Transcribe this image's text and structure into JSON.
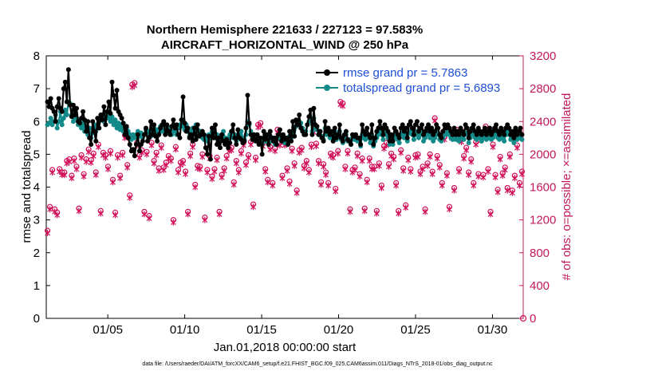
{
  "chart_data": {
    "type": "line",
    "title_line1": "Northern Hemisphere 221633 / 227123 = 97.583%",
    "title_line2": "AIRCRAFT_HORIZONTAL_WIND @ 250 hPa",
    "xlabel": "Jan.01,2018 00:00:00 start",
    "ylabel_left": "rmse and totalspread",
    "ylabel_right": "# of obs: o=possible; ×=assimilated",
    "footer": "data file: /Users/raeder/DAI/ATM_forcXX/CAM6_setup/f.e21.FHIST_BGC.f09_025.CAM6assim.011/Diags_NTrS_2018-01/obs_diag_output.nc",
    "xlim": [
      1.0,
      32.0
    ],
    "ylim_left": [
      0,
      8
    ],
    "ylim_right": [
      0,
      3200
    ],
    "x_ticks": [
      {
        "x": 5,
        "label": "01/05"
      },
      {
        "x": 10,
        "label": "01/10"
      },
      {
        "x": 15,
        "label": "01/15"
      },
      {
        "x": 20,
        "label": "01/20"
      },
      {
        "x": 25,
        "label": "01/25"
      },
      {
        "x": 30,
        "label": "01/30"
      }
    ],
    "y_ticks_left": [
      "0",
      "1",
      "2",
      "3",
      "4",
      "5",
      "6",
      "7",
      "8"
    ],
    "y_ticks_right": [
      "0",
      "400",
      "800",
      "1200",
      "1600",
      "2000",
      "2400",
      "2800",
      "3200"
    ],
    "legend": [
      {
        "label": "rmse grand pr = 5.7863",
        "color": "#000000"
      },
      {
        "label": "totalspread grand pr = 5.6893",
        "color": "#138a8a"
      }
    ],
    "series": [
      {
        "name": "rmse",
        "color": "#000000",
        "marker": "dot",
        "axis": "left",
        "values": [
          6.6,
          6.45,
          6.7,
          6.4,
          6.3,
          6.0,
          6.45,
          6.7,
          6.4,
          6.3,
          7.0,
          7.2,
          6.6,
          7.58,
          6.5,
          6.15,
          6.5,
          6.2,
          6.4,
          6.0,
          5.95,
          6.1,
          6.3,
          6.05,
          5.7,
          6.0,
          5.5,
          5.3,
          6.0,
          5.7,
          5.4,
          6.1,
          5.8,
          6.2,
          6.05,
          6.45,
          5.9,
          6.3,
          6.6,
          6.25,
          7.2,
          6.8,
          6.4,
          6.95,
          6.3,
          6.2,
          6.1,
          5.95,
          5.6,
          5.85,
          5.5,
          5.3,
          5.1,
          5.15,
          4.95,
          5.3,
          5.6,
          5.1,
          5.3,
          5.4,
          5.6,
          5.8,
          5.4,
          5.5,
          6.0,
          5.6,
          5.9,
          5.55,
          5.4,
          5.6,
          5.8,
          5.9,
          6.0,
          5.6,
          5.9,
          5.7,
          5.6,
          5.85,
          6.05,
          5.8,
          5.9,
          5.6,
          5.5,
          6.05,
          6.75,
          5.95,
          5.7,
          5.8,
          5.5,
          5.6,
          5.4,
          5.8,
          5.45,
          5.9,
          5.55,
          5.6,
          5.7,
          5.6,
          5.2,
          5.0,
          5.55,
          4.85,
          5.8,
          5.5,
          5.9,
          5.3,
          5.5,
          5.2,
          5.6,
          5.4,
          5.3,
          5.45,
          5.2,
          5.35,
          5.7,
          5.9,
          5.5,
          5.3,
          5.75,
          5.5,
          5.45,
          5.35,
          5.4,
          5.8,
          6.8,
          5.95,
          5.6,
          5.45,
          5.6,
          5.4,
          5.6,
          5.3,
          5.5,
          5.0,
          5.7,
          5.45,
          5.6,
          5.3,
          5.7,
          5.5,
          5.4,
          5.5,
          5.3,
          5.6,
          5.75,
          5.4,
          5.6,
          5.45,
          5.5,
          5.3,
          5.7,
          5.4,
          6.0,
          5.55,
          6.05,
          5.9,
          6.2,
          5.8,
          5.7,
          5.6,
          5.6,
          5.9,
          6.15,
          6.35,
          5.6,
          6.4,
          5.9,
          5.85,
          5.6,
          5.7,
          5.5,
          5.4,
          6.0,
          5.7,
          5.8,
          5.6,
          5.7,
          5.4,
          5.8,
          5.5,
          5.6,
          5.9,
          5.5,
          5.4,
          5.6,
          5.7,
          5.45,
          5.4,
          5.3,
          5.6,
          5.55,
          5.6,
          5.5,
          5.5,
          5.3,
          5.9,
          5.7,
          5.6,
          5.8,
          5.6,
          5.5,
          5.9,
          5.3,
          5.5,
          5.7,
          5.8,
          6.0,
          5.8,
          5.6,
          5.9,
          5.8,
          5.7,
          5.4,
          5.6,
          5.4,
          5.8,
          5.7,
          5.6,
          5.5,
          5.8,
          5.9,
          5.7,
          5.8,
          5.5,
          5.9,
          6.0,
          5.8,
          5.6,
          5.9,
          6.0,
          5.7,
          5.8,
          5.9,
          5.6,
          5.7,
          5.8,
          5.9,
          5.7,
          5.8,
          5.6,
          5.7,
          5.9,
          5.8,
          5.6,
          5.5,
          5.7,
          5.9,
          5.8,
          5.9,
          5.8,
          5.7,
          5.6,
          5.8,
          5.6,
          5.7,
          5.6,
          5.8,
          5.7,
          5.6,
          5.9,
          5.8,
          5.5,
          5.7,
          5.8,
          5.9,
          5.7,
          5.6,
          5.8,
          5.7,
          5.6,
          5.7,
          5.8,
          5.6,
          5.7,
          5.8,
          5.6,
          5.7,
          5.8,
          5.9,
          5.7,
          5.6,
          5.8,
          5.7,
          5.6,
          5.8,
          5.9,
          5.8,
          5.6,
          5.7,
          5.5,
          5.8,
          5.6,
          5.7,
          5.8,
          5.6
        ]
      },
      {
        "name": "totalspread",
        "color": "#138a8a",
        "marker": "dot",
        "axis": "left",
        "values": [
          5.9,
          5.95,
          6.1,
          5.9,
          6.0,
          6.2,
          5.8,
          6.0,
          6.3,
          5.9,
          6.1,
          6.35,
          6.2,
          6.6,
          6.55,
          6.2,
          6.0,
          6.3,
          6.1,
          5.9,
          6.0,
          5.8,
          5.95,
          5.7,
          5.85,
          5.6,
          5.8,
          5.5,
          5.65,
          5.9,
          5.7,
          5.9,
          6.0,
          6.1,
          6.2,
          6.0,
          6.25,
          6.1,
          6.3,
          6.0,
          6.15,
          5.9,
          6.05,
          5.8,
          5.95,
          5.75,
          5.9,
          5.7,
          5.75,
          5.8,
          5.7,
          5.6,
          5.45,
          5.6,
          5.5,
          5.6,
          5.7,
          5.55,
          5.65,
          5.5,
          5.6,
          5.75,
          5.6,
          5.7,
          5.55,
          5.7,
          5.8,
          5.6,
          5.75,
          5.6,
          5.85,
          5.7,
          5.8,
          5.9,
          5.65,
          5.8,
          5.75,
          5.6,
          5.7,
          5.85,
          5.6,
          5.8,
          5.9,
          5.85,
          6.05,
          5.75,
          5.9,
          5.7,
          5.55,
          5.7,
          5.8,
          5.6,
          5.9,
          5.75,
          5.6,
          5.7,
          5.5,
          5.45,
          5.55,
          5.4,
          5.6,
          5.5,
          5.7,
          5.8,
          5.5,
          5.6,
          5.5,
          5.45,
          5.6,
          5.7,
          5.5,
          5.4,
          5.5,
          5.6,
          5.7,
          5.5,
          5.6,
          5.4,
          5.5,
          5.6,
          5.7,
          5.5,
          5.45,
          5.6,
          6.0,
          5.9,
          5.7,
          5.5,
          5.6,
          5.45,
          5.5,
          5.35,
          5.45,
          5.3,
          5.5,
          5.4,
          5.6,
          5.45,
          5.55,
          5.4,
          5.5,
          5.3,
          5.45,
          5.5,
          5.55,
          5.45,
          5.5,
          5.35,
          5.5,
          5.4,
          5.55,
          5.5,
          5.7,
          5.55,
          5.85,
          5.9,
          6.0,
          5.95,
          5.8,
          5.6,
          5.7,
          5.9,
          6.0,
          6.05,
          5.7,
          6.1,
          5.8,
          5.75,
          5.6,
          5.7,
          5.55,
          5.45,
          5.8,
          5.6,
          5.7,
          5.5,
          5.6,
          5.4,
          5.7,
          5.45,
          5.55,
          5.7,
          5.45,
          5.35,
          5.5,
          5.6,
          5.4,
          5.45,
          5.3,
          5.5,
          5.45,
          5.5,
          5.4,
          5.4,
          5.25,
          5.6,
          5.5,
          5.45,
          5.6,
          5.5,
          5.35,
          5.6,
          5.25,
          5.4,
          5.5,
          5.6,
          5.7,
          5.6,
          5.45,
          5.7,
          5.6,
          5.5,
          5.3,
          5.45,
          5.3,
          5.6,
          5.5,
          5.45,
          5.35,
          5.6,
          5.65,
          5.5,
          5.6,
          5.4,
          5.65,
          5.7,
          5.6,
          5.45,
          5.6,
          5.7,
          5.5,
          5.6,
          5.7,
          5.4,
          5.5,
          5.6,
          5.7,
          5.5,
          5.6,
          5.4,
          5.5,
          5.7,
          5.6,
          5.45,
          5.4,
          5.5,
          5.65,
          5.6,
          5.7,
          5.6,
          5.5,
          5.45,
          5.6,
          5.45,
          5.5,
          5.4,
          5.6,
          5.5,
          5.45,
          5.65,
          5.6,
          5.35,
          5.5,
          5.6,
          5.7,
          5.5,
          5.45,
          5.6,
          5.5,
          5.4,
          5.5,
          5.6,
          5.45,
          5.5,
          5.6,
          5.45,
          5.5,
          5.6,
          5.7,
          5.5,
          5.45,
          5.6,
          5.5,
          5.4,
          5.6,
          5.7,
          5.6,
          5.45,
          5.5,
          5.35,
          5.6,
          5.45,
          5.5,
          5.6,
          5.45
        ]
      }
    ],
    "obs_possible": {
      "name": "possible",
      "color": "#d1105a",
      "marker": "o",
      "axis": "right",
      "values": [
        1070,
        1360,
        1810,
        1330,
        1290,
        1820,
        1780,
        1780,
        1920,
        1940,
        1740,
        1950,
        1850,
        1340,
        1990,
        1760,
        1940,
        2060,
        1930,
        2010,
        1780,
        2120,
        1310,
        2020,
        1990,
        1850,
        2040,
        1690,
        1290,
        1990,
        1740,
        2020,
        2230,
        1870,
        1500,
        2850,
        2870,
        2140,
        1990,
        2050,
        1300,
        2030,
        1250,
        2140,
        1920,
        2020,
        1830,
        2110,
        1840,
        1900,
        1980,
        1950,
        1200,
        2090,
        1810,
        1900,
        1920,
        1790,
        1300,
        2010,
        2120,
        1630,
        1860,
        1850,
        2000,
        1230,
        1810,
        1980,
        1730,
        1820,
        1960,
        1300,
        1750,
        1830,
        1980,
        2070,
        2080,
        1660,
        1920,
        1810,
        2040,
        2140,
        1900,
        1990,
        2150,
        1390,
        1960,
        2360,
        2380,
        2130,
        1820,
        1690,
        2090,
        1650,
        2070,
        2300,
        2140,
        1740,
        2140,
        1830,
        1670,
        2070,
        1890,
        1560,
        2050,
        2080,
        1860,
        1920,
        1810,
        2120,
        2300,
        2130,
        1920,
        1660,
        1880,
        1780,
        1650,
        2010,
        1990,
        1580,
        2040,
        2640,
        2620,
        1850,
        2040,
        1330,
        1810,
        1840,
        2010,
        1760,
        1950,
        1340,
        1690,
        1950,
        1850,
        1850,
        1310,
        1890,
        1620,
        2100,
        2140,
        1880,
        2010,
        1970,
        1650,
        1310,
        2050,
        1830,
        1380,
        1960,
        1820,
        2300,
        1990,
        2000,
        1790,
        1850,
        1330,
        1890,
        2000,
        1790,
        2440,
        1980,
        1870,
        1650,
        2210,
        1770,
        1360,
        2230,
        1590,
        2300,
        1820,
        2180,
        1980,
        2080,
        1780,
        1940,
        1650,
        2150,
        1760,
        2200,
        1750,
        2340,
        1820,
        1300,
        2120,
        1750,
        1570,
        1970,
        1770,
        1840,
        1590,
        2000,
        1560,
        1740,
        2110,
        1650,
        1790
      ]
    },
    "obs_assimilated": {
      "name": "assimilated",
      "color": "#d1105a",
      "marker": "x",
      "axis": "right",
      "values": [
        1040,
        1330,
        1780,
        1300,
        1260,
        1790,
        1750,
        1750,
        1890,
        1910,
        1710,
        1920,
        1820,
        1310,
        1960,
        1730,
        1910,
        2030,
        1900,
        1980,
        1750,
        2090,
        1280,
        1990,
        1960,
        1820,
        2010,
        1660,
        1260,
        1960,
        1710,
        1990,
        2200,
        1840,
        1470,
        2820,
        2840,
        2110,
        1960,
        2020,
        1270,
        2000,
        1220,
        2110,
        1890,
        1990,
        1800,
        2080,
        1810,
        1870,
        1950,
        1920,
        1170,
        2060,
        1780,
        1870,
        1890,
        1760,
        1270,
        1980,
        2090,
        1600,
        1830,
        1820,
        1970,
        1200,
        1780,
        1950,
        1700,
        1790,
        1930,
        1270,
        1720,
        1800,
        1950,
        2040,
        2050,
        1630,
        1890,
        1780,
        2010,
        2110,
        1870,
        1960,
        2120,
        1360,
        1930,
        2330,
        2350,
        2100,
        1790,
        1660,
        2060,
        1620,
        2040,
        2270,
        2110,
        1710,
        2110,
        1800,
        1640,
        2040,
        1860,
        1530,
        2020,
        2050,
        1830,
        1890,
        1780,
        2090,
        2270,
        2100,
        1890,
        1630,
        1850,
        1750,
        1620,
        1980,
        1960,
        1550,
        2010,
        2610,
        2590,
        1820,
        2010,
        1300,
        1780,
        1810,
        1980,
        1730,
        1920,
        1310,
        1660,
        1920,
        1820,
        1820,
        1280,
        1860,
        1590,
        2070,
        2110,
        1850,
        1980,
        1940,
        1620,
        1280,
        2020,
        1800,
        1350,
        1930,
        1790,
        2270,
        1960,
        1970,
        1760,
        1820,
        1300,
        1860,
        1970,
        1760,
        2410,
        1950,
        1840,
        1620,
        2180,
        1740,
        1330,
        2200,
        1560,
        2270,
        1790,
        2150,
        1950,
        2050,
        1750,
        1910,
        1620,
        2120,
        1730,
        2170,
        1720,
        2310,
        1790,
        1270,
        2090,
        1720,
        1540,
        1940,
        1740,
        1810,
        1560,
        1970,
        1530,
        1710,
        2080,
        1620,
        1760
      ]
    }
  }
}
